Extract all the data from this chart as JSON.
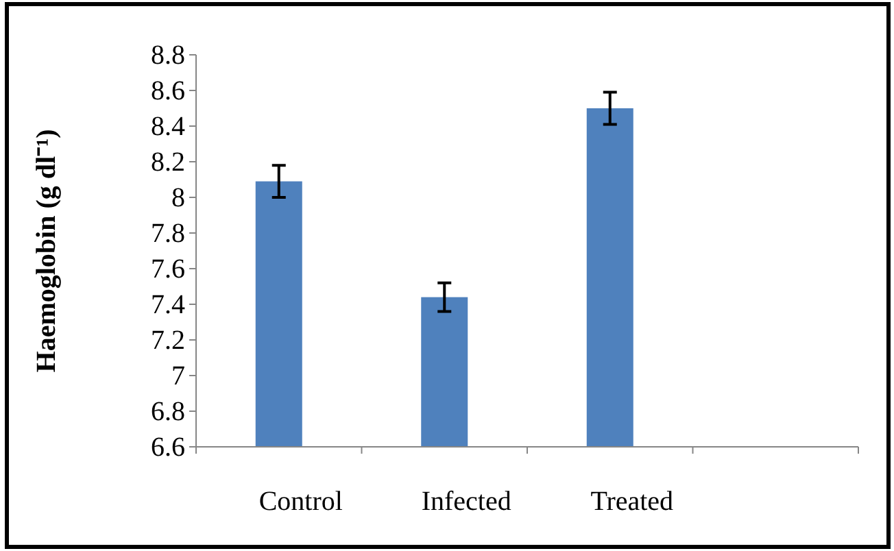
{
  "chart_data": {
    "type": "bar",
    "ylabel": "Haemoglobin (g dl⁻¹)",
    "categories": [
      "Control",
      "Infected",
      "Treated",
      null
    ],
    "values": [
      8.09,
      7.44,
      8.5,
      null
    ],
    "errors": [
      0.09,
      0.08,
      0.09,
      null
    ],
    "color": "#4f81bd",
    "ylim": [
      6.6,
      8.8
    ],
    "yticks": [
      6.6,
      6.8,
      7,
      7.2,
      7.4,
      7.6,
      7.8,
      8,
      8.2,
      8.4,
      8.6,
      8.8
    ]
  }
}
